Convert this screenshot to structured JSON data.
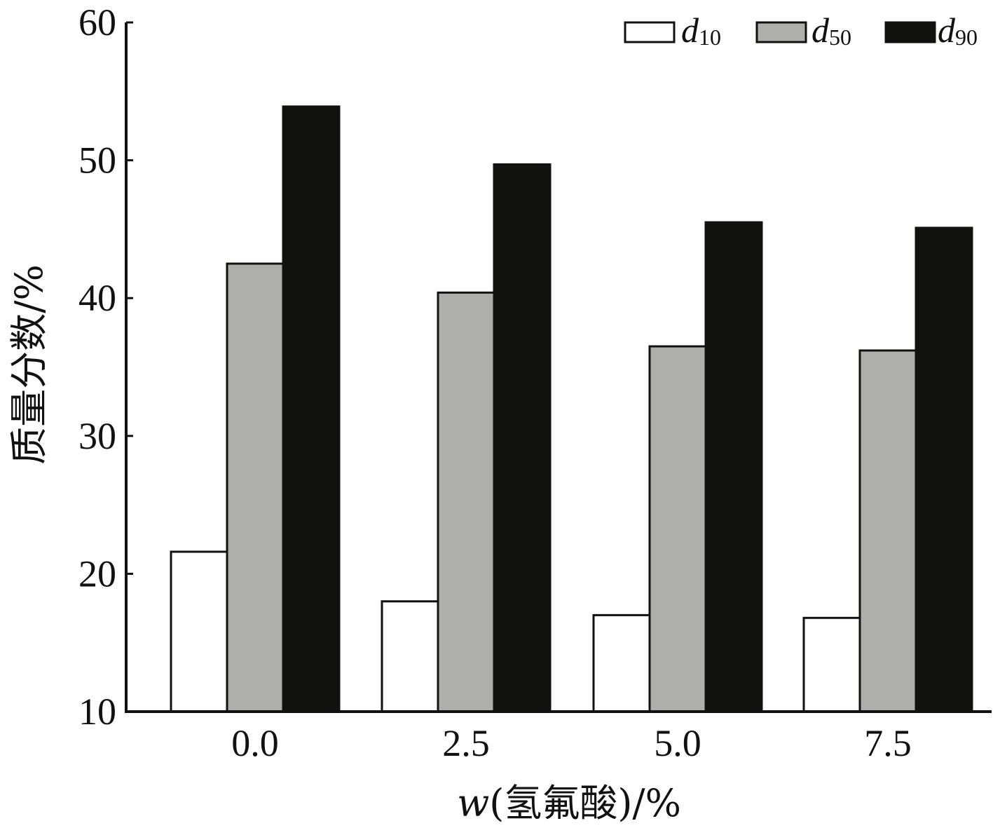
{
  "chart_data": {
    "type": "bar",
    "categories": [
      "0.0",
      "2.5",
      "5.0",
      "7.5"
    ],
    "series": [
      {
        "name": "d",
        "subscript": "10",
        "values": [
          21.6,
          18.0,
          17.0,
          16.8
        ],
        "color": "#ffffff"
      },
      {
        "name": "d",
        "subscript": "50",
        "values": [
          42.5,
          40.4,
          36.5,
          36.2
        ],
        "color": "#aeaeab"
      },
      {
        "name": "d",
        "subscript": "90",
        "values": [
          53.9,
          49.7,
          45.5,
          45.1
        ],
        "color": "#11110d"
      }
    ],
    "xlabel": {
      "var": "w",
      "rest": "(氢氟酸)/%"
    },
    "ylabel": "质量分数/%",
    "ylim": [
      10,
      60
    ],
    "yticks": [
      "10",
      "20",
      "30",
      "40",
      "50",
      "60"
    ],
    "legend_position": "top-right",
    "grid": false
  }
}
